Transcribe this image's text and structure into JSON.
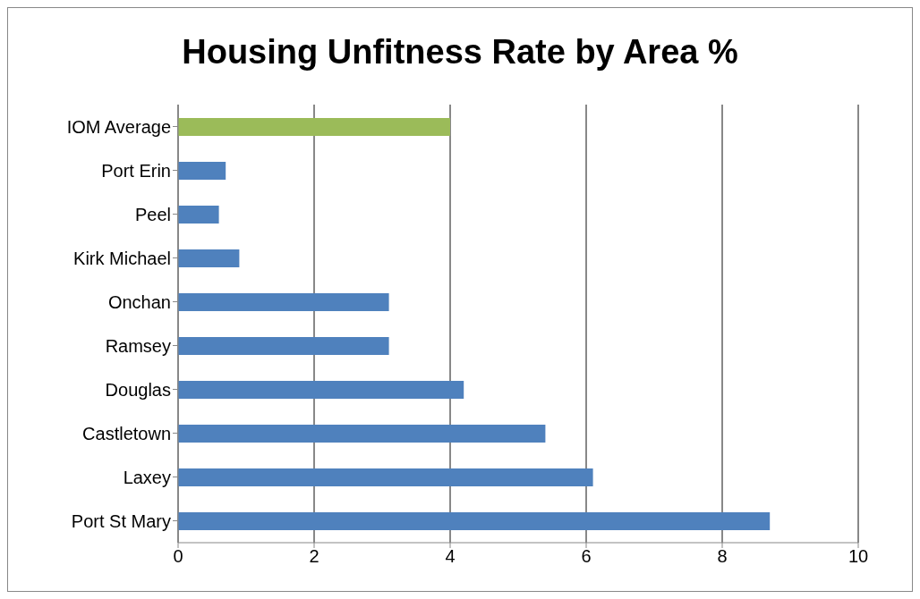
{
  "chart_data": {
    "type": "bar",
    "orientation": "horizontal",
    "title": "Housing Unfitness Rate by Area %",
    "categories": [
      "IOM Average",
      "Port Erin",
      "Peel",
      "Kirk Michael",
      "Onchan",
      "Ramsey",
      "Douglas",
      "Castletown",
      "Laxey",
      "Port St Mary"
    ],
    "values": [
      4.0,
      0.7,
      0.6,
      0.9,
      3.1,
      3.1,
      4.2,
      5.4,
      6.1,
      8.7
    ],
    "colors": [
      "#9bbb59",
      "#4f81bd",
      "#4f81bd",
      "#4f81bd",
      "#4f81bd",
      "#4f81bd",
      "#4f81bd",
      "#4f81bd",
      "#4f81bd",
      "#4f81bd"
    ],
    "xlim": [
      0,
      10
    ],
    "xticks": [
      0,
      2,
      4,
      6,
      8,
      10
    ],
    "grid": "x"
  }
}
